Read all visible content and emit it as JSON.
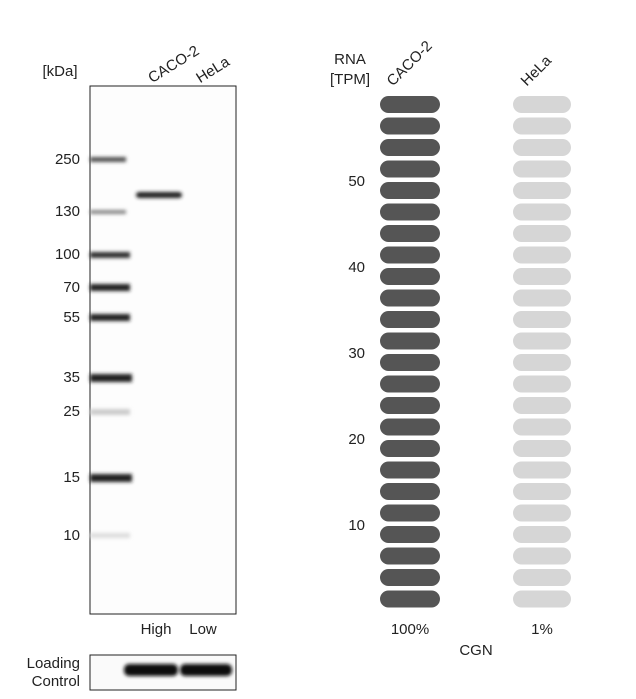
{
  "blot": {
    "unit": "[kDa]",
    "lanes": [
      "CACO-2",
      "HeLa"
    ],
    "markers": [
      "250",
      "130",
      "100",
      "70",
      "55",
      "35",
      "25",
      "15",
      "10"
    ],
    "levels": [
      "High",
      "Low"
    ],
    "loading_control": [
      "Loading",
      "Control"
    ]
  },
  "rna": {
    "axis_label": [
      "RNA",
      "[TPM]"
    ],
    "samples": [
      "CACO-2",
      "HeLa"
    ],
    "ticks": [
      "50",
      "40",
      "30",
      "20",
      "10"
    ],
    "percentages": [
      "100%",
      "1%"
    ],
    "gene": "CGN"
  }
}
